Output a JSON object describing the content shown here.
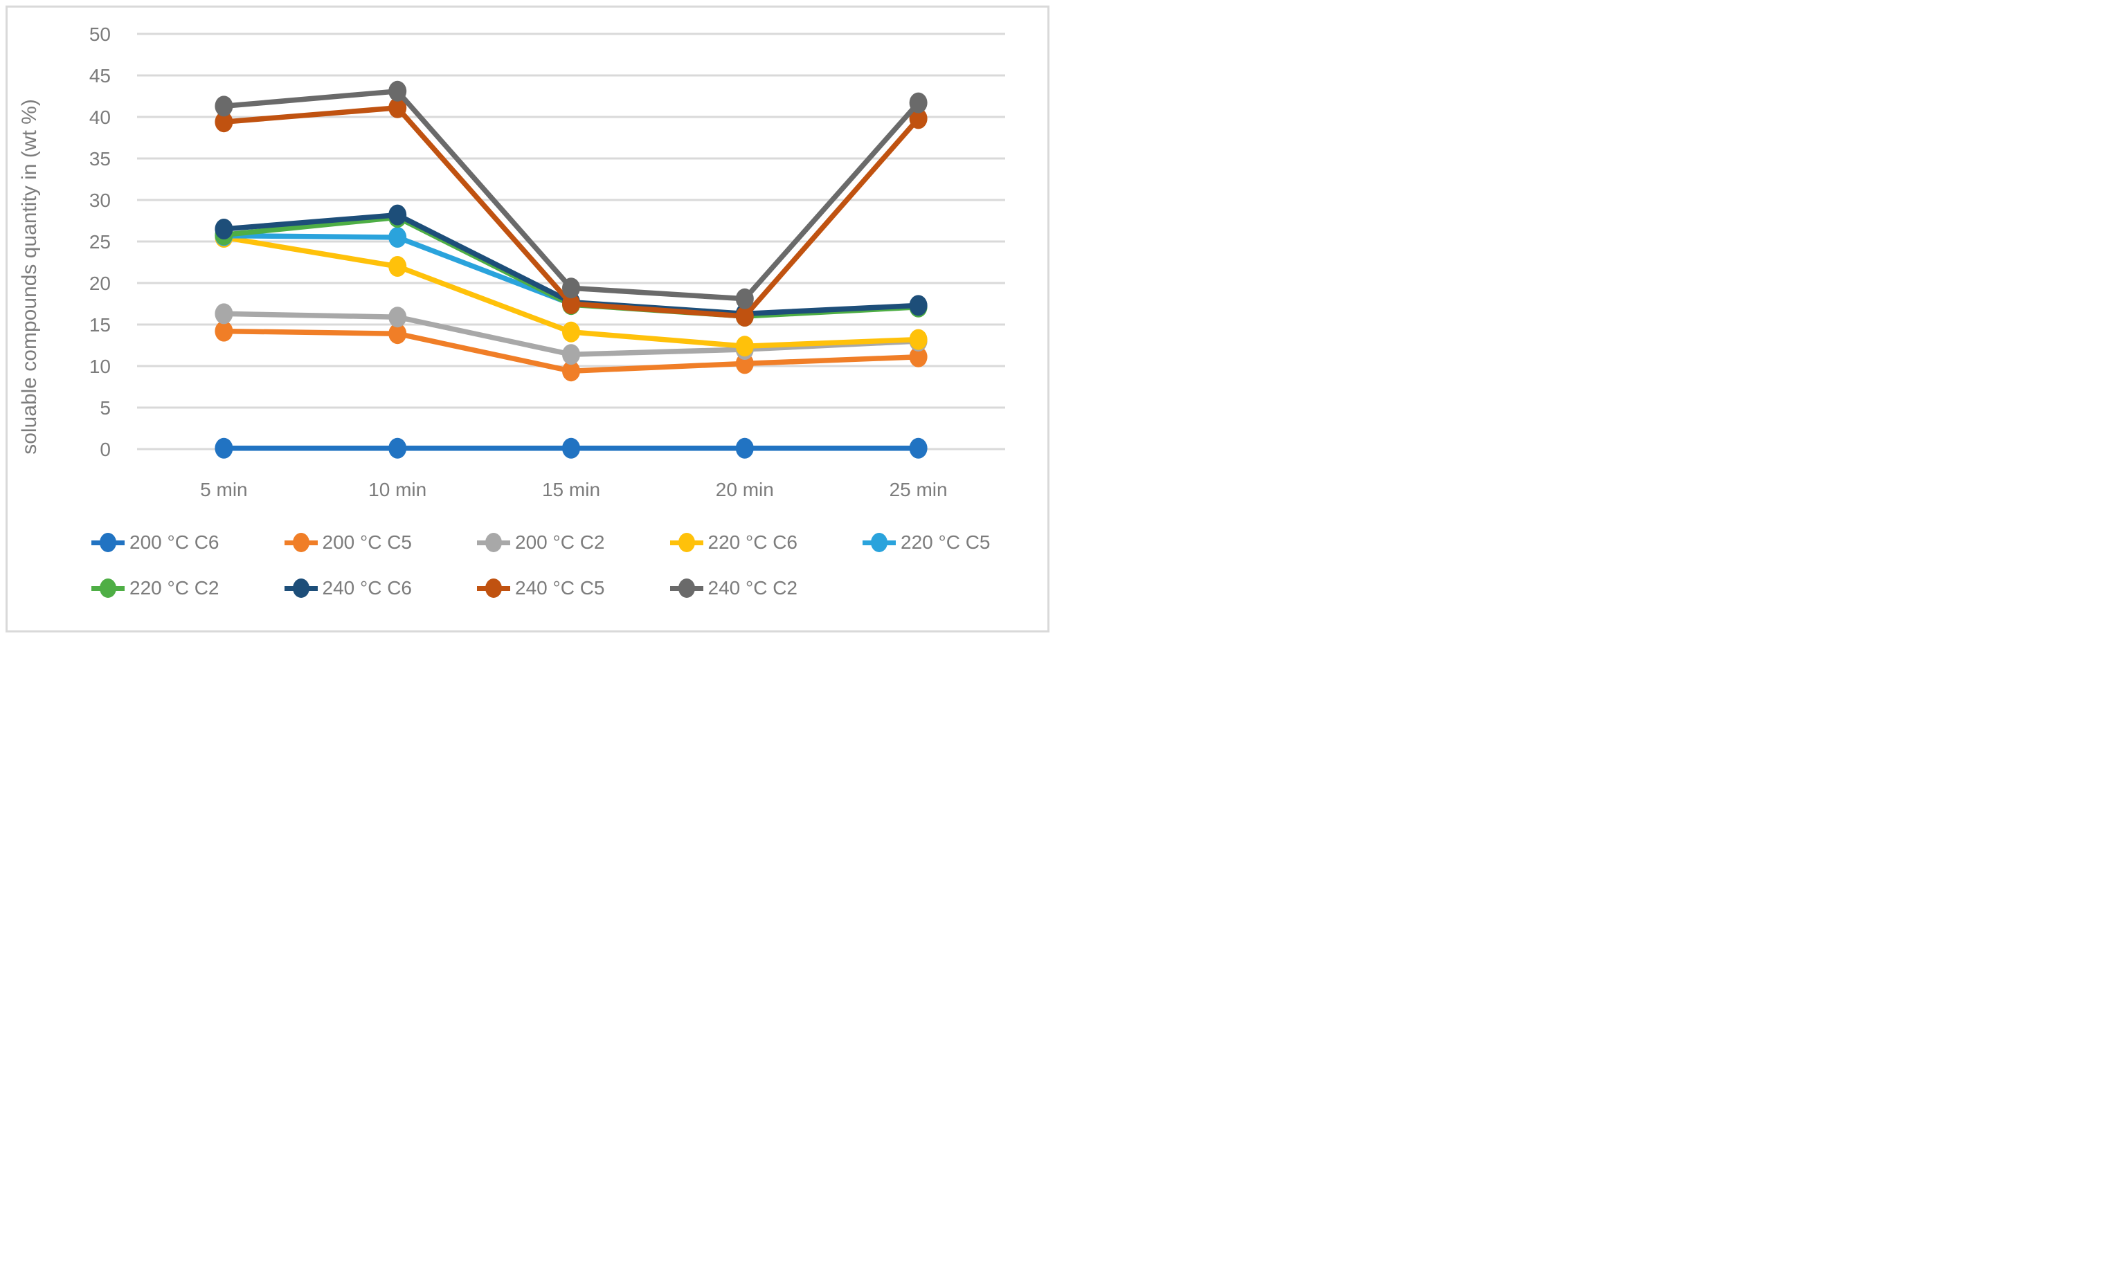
{
  "figure": {
    "y_axis_title": "soluable compounds quantity in (wt %)"
  },
  "chart_data": {
    "type": "line",
    "title": "",
    "xlabel": "",
    "ylabel": "soluable compounds quantity in (wt %)",
    "categories": [
      "5 min",
      "10 min",
      "15 min",
      "20 min",
      "25 min"
    ],
    "yticks": [
      "0",
      "5",
      "10",
      "15",
      "20",
      "25",
      "30",
      "35",
      "40",
      "45",
      "50"
    ],
    "ylim": [
      0,
      50
    ],
    "ytick_step": 5,
    "grid": true,
    "legend_position": "bottom",
    "legend_rows": [
      5,
      4
    ],
    "colors": {
      "grid": "#d9d9d9",
      "tick_text": "#7c7c7c",
      "axis_title_text": "#7c7c7c",
      "frame": "#d9d9d9"
    },
    "series": [
      {
        "name": "200 °C C6",
        "color": "#2173c2",
        "values": [
          0.1,
          0.1,
          0.1,
          0.1,
          0.1
        ]
      },
      {
        "name": "200 °C C5",
        "color": "#f07e27",
        "values": [
          14.2,
          13.9,
          9.4,
          10.3,
          11.1
        ]
      },
      {
        "name": "200 °C C2",
        "color": "#a8a8a8",
        "values": [
          16.3,
          15.9,
          11.4,
          12.0,
          13.0
        ]
      },
      {
        "name": "220 °C C6",
        "color": "#ffc10a",
        "values": [
          25.5,
          22.0,
          14.1,
          12.4,
          13.2
        ]
      },
      {
        "name": "220 °C C5",
        "color": "#2aa3dc",
        "values": [
          25.7,
          25.5,
          17.5,
          16.1,
          17.2
        ]
      },
      {
        "name": "220 °C C2",
        "color": "#4eae45",
        "values": [
          25.8,
          27.9,
          17.4,
          16.0,
          17.1
        ]
      },
      {
        "name": "240 °C C6",
        "color": "#1d4e79",
        "values": [
          26.5,
          28.2,
          17.7,
          16.3,
          17.3
        ]
      },
      {
        "name": "240 °C C5",
        "color": "#c05210",
        "values": [
          39.4,
          41.1,
          17.5,
          16.0,
          39.8
        ]
      },
      {
        "name": "240 °C C2",
        "color": "#6a6a6a",
        "values": [
          41.3,
          43.1,
          19.4,
          18.1,
          41.7
        ]
      }
    ]
  }
}
